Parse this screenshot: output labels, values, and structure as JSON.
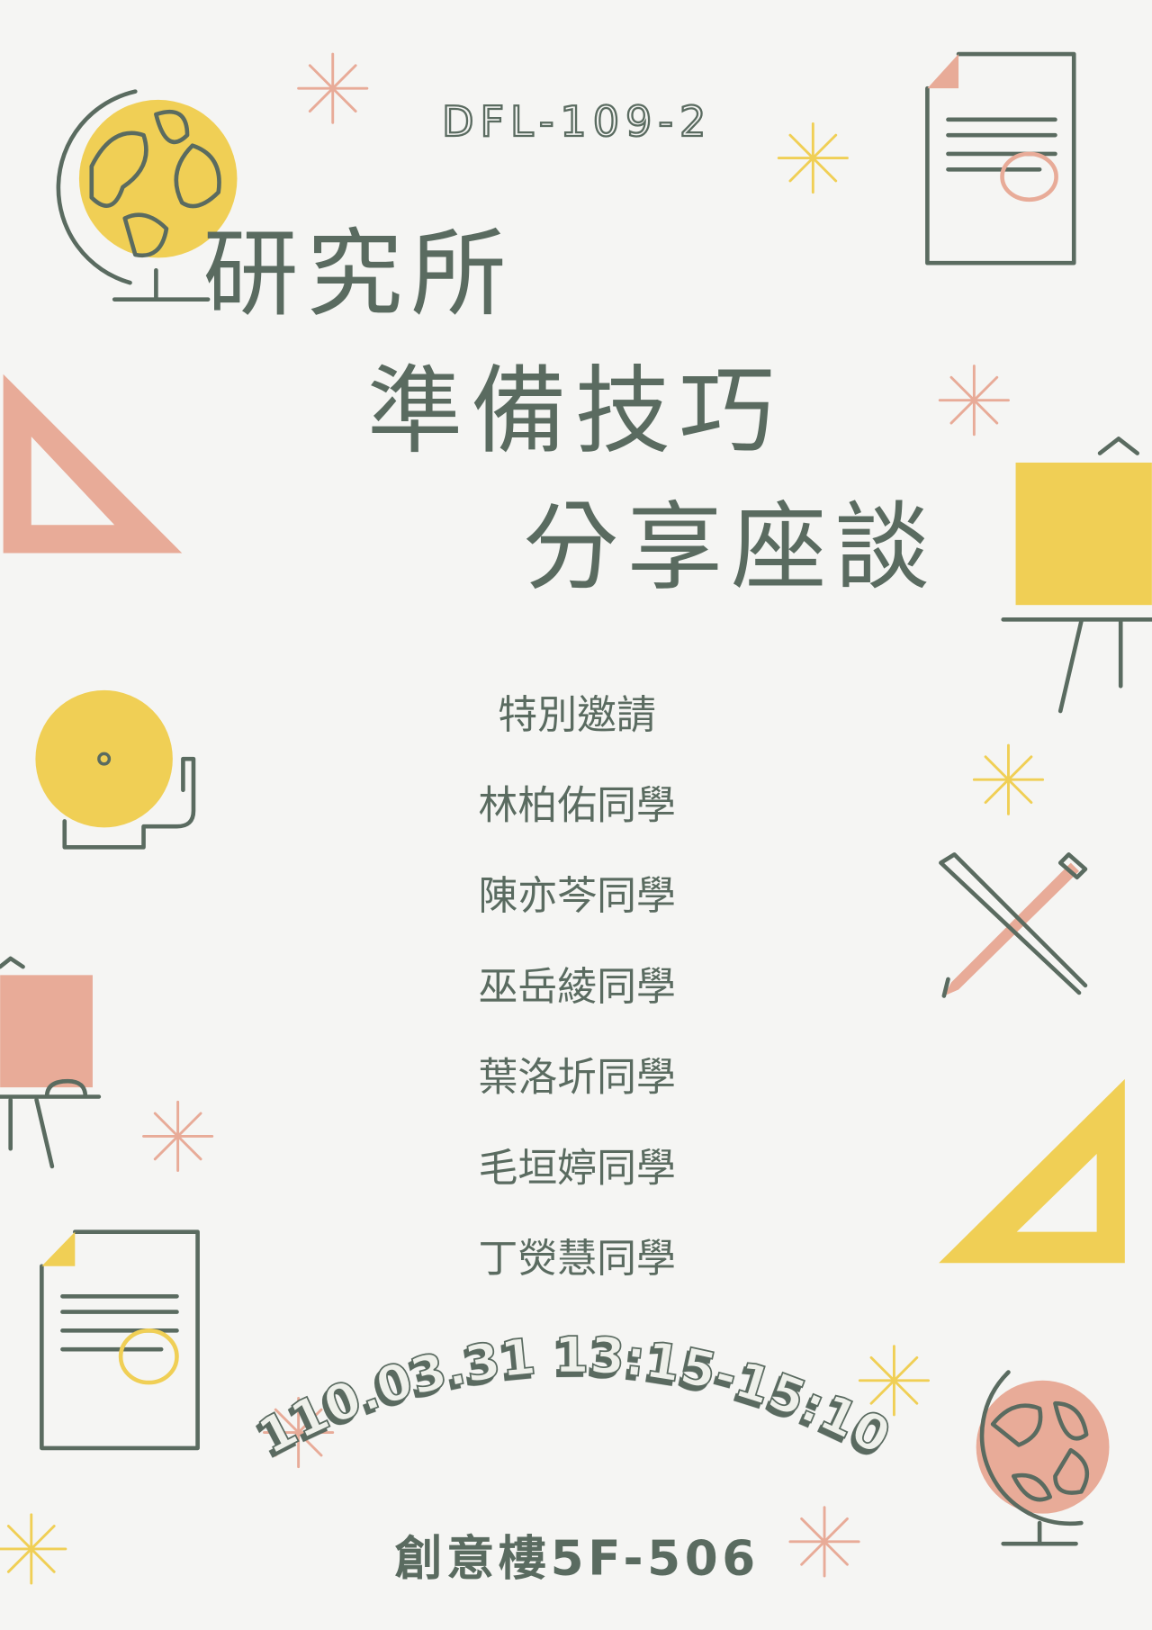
{
  "header": {
    "code": "DFL-109-2"
  },
  "title": {
    "lines": [
      "研究所",
      "準備技巧",
      "分享座談"
    ]
  },
  "guests": {
    "heading": "特別邀請",
    "names": [
      "林柏佑同學",
      "陳亦芩同學",
      "巫岳綾同學",
      "葉洛圻同學",
      "毛垣婷同學",
      "丁熒慧同學"
    ]
  },
  "event": {
    "datetime": "110.03.31 13:15-15:10",
    "location": "創意樓5F-506"
  }
}
